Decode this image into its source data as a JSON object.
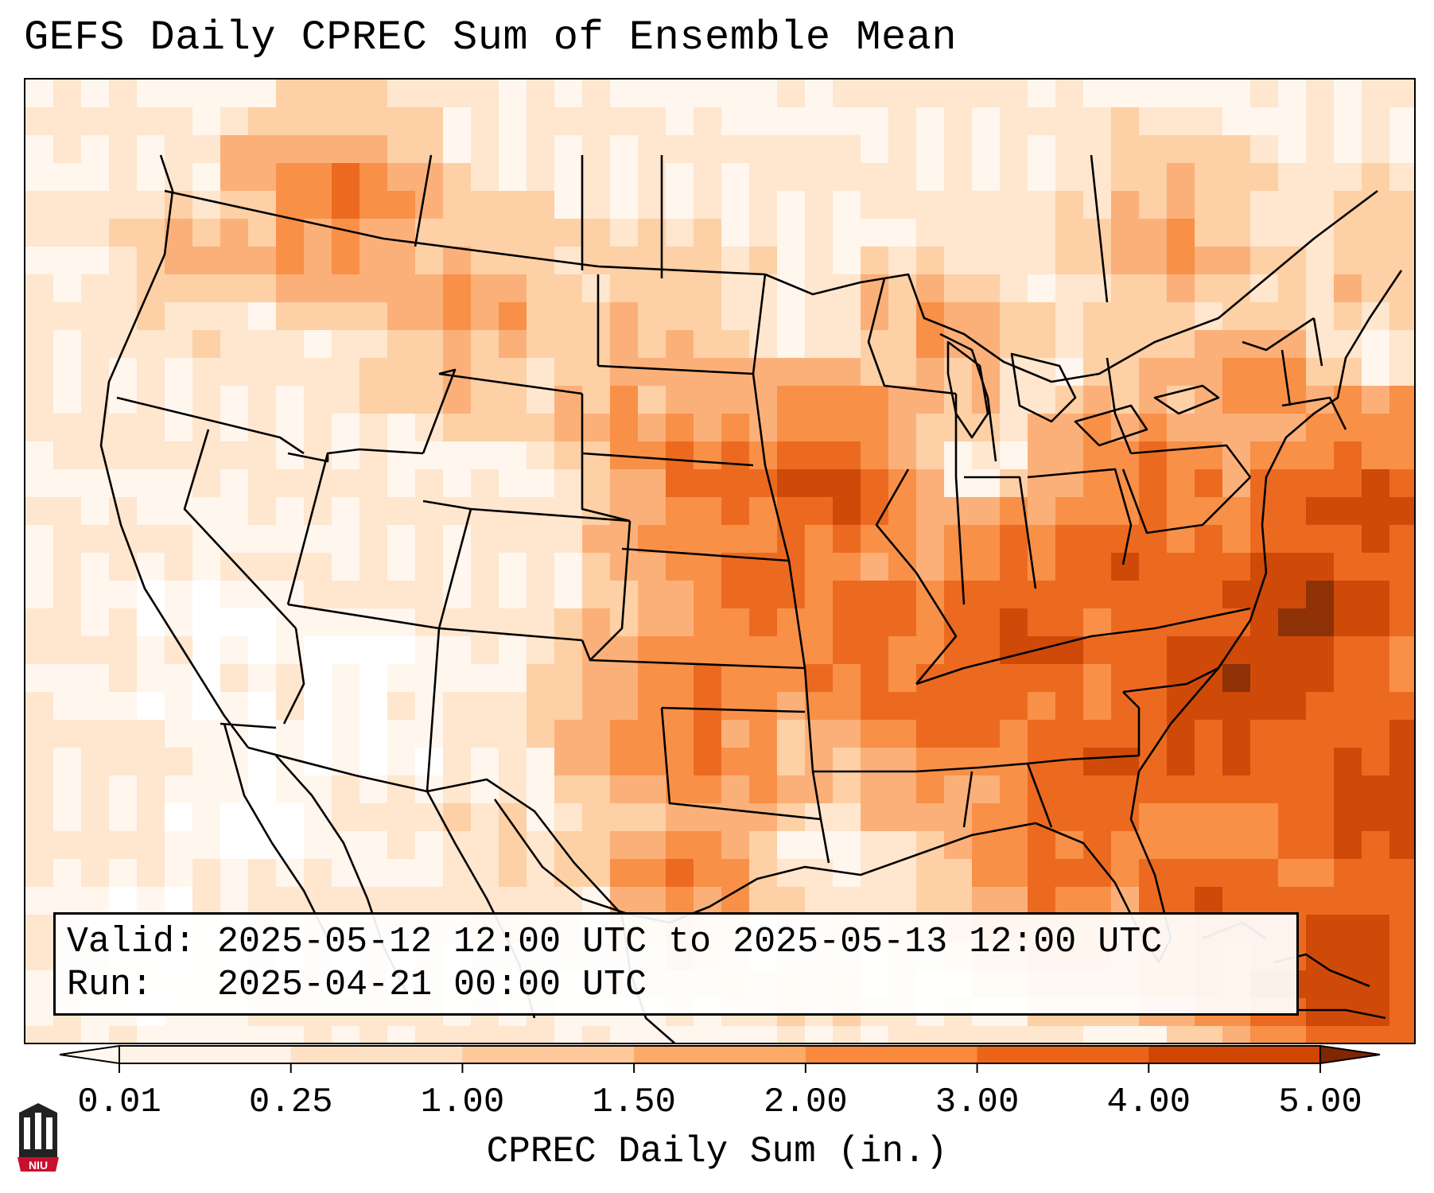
{
  "title": "GEFS Daily CPREC Sum of Ensemble Mean",
  "info": {
    "valid_label": "Valid:",
    "valid_value": "2025-05-12 12:00 UTC to 2025-05-13 12:00 UTC",
    "run_label": "Run:",
    "run_value": "2025-04-21 00:00 UTC"
  },
  "colorbar": {
    "label": "CPREC Daily Sum (in.)",
    "ticks": [
      "0.01",
      "0.25",
      "1.00",
      "1.50",
      "2.00",
      "3.00",
      "4.00",
      "5.00"
    ],
    "colors": [
      "#fff2e6",
      "#fee0c4",
      "#fdc99a",
      "#fdaa68",
      "#f98a3d",
      "#ec6418",
      "#cf4603",
      "#9a2f03"
    ],
    "extend_low_color": "#fff8f0",
    "extend_high_color": "#7f2704"
  },
  "logo": {
    "text": "NIU",
    "colors": {
      "red": "#c8102e",
      "dark": "#222222"
    }
  },
  "map_colors": {
    "ocean_light": "#fff6ee",
    "dry_land": "#ffffff",
    "light": "#fee6cf",
    "medium_light": "#fdd0a5",
    "medium": "#fbb07a",
    "orange": "#f89048",
    "dark_orange": "#ec6a20",
    "deep": "#cf4a08",
    "darkest": "#8e3106",
    "state_lines": "#000000"
  }
}
